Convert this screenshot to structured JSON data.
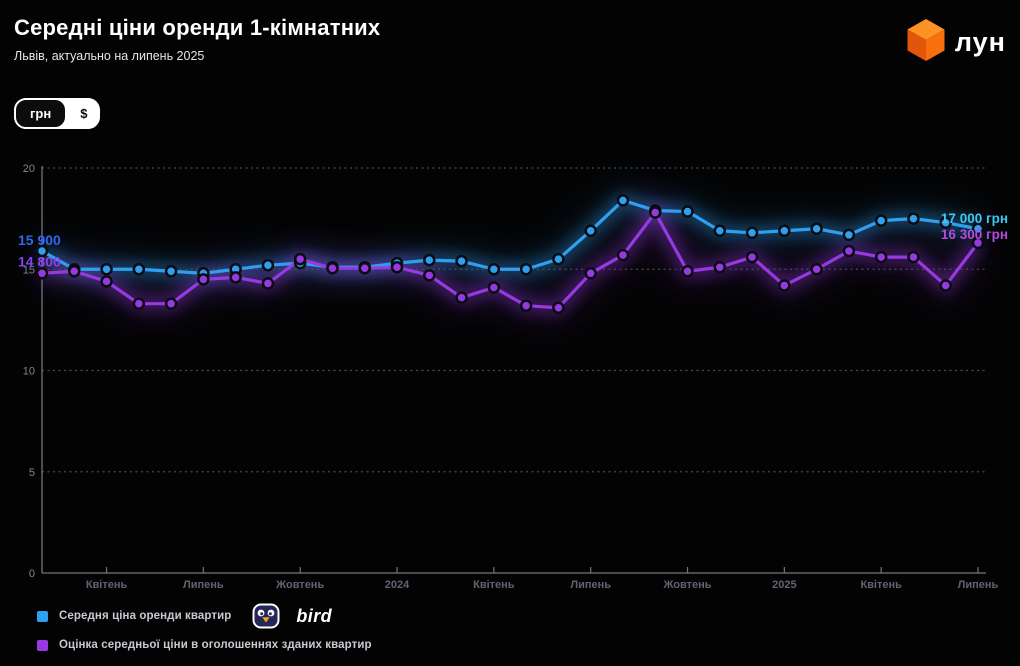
{
  "header": {
    "title": "Середні ціни оренди 1-кімнатних",
    "subtitle": "Львів, актуально на липень 2025",
    "logo_text": "лун"
  },
  "currency_toggle": {
    "options": [
      {
        "label": "грн",
        "active": true
      },
      {
        "label": "$",
        "active": false
      }
    ]
  },
  "chart_data": {
    "type": "line",
    "title": "Середні ціни оренди 1-кімнатних",
    "subtitle": "Львів, актуально на липень 2025",
    "y_scale_note": "values in thousands of грн",
    "ylim": [
      0,
      20
    ],
    "y_ticks": [
      0,
      5,
      10,
      15,
      20
    ],
    "grid": "dotted horizontal gridlines",
    "legend_position": "bottom-left",
    "points_count": 30,
    "x_ticks": [
      {
        "index": 2,
        "label": "Квітень"
      },
      {
        "index": 5,
        "label": "Липень"
      },
      {
        "index": 8,
        "label": "Жовтень"
      },
      {
        "index": 11,
        "label": "2024"
      },
      {
        "index": 14,
        "label": "Квітень"
      },
      {
        "index": 17,
        "label": "Липень"
      },
      {
        "index": 20,
        "label": "Жовтень"
      },
      {
        "index": 23,
        "label": "2025"
      },
      {
        "index": 26,
        "label": "Квітень"
      },
      {
        "index": 29,
        "label": "Липень"
      }
    ],
    "series": [
      {
        "name": "Середня ціна оренди квартир",
        "color": "#2f9ff0",
        "start_label": "15 900",
        "start_label_color": "#2d68f0",
        "end_label": "17 000 грн",
        "end_label_color": "#3cc8f5",
        "values": [
          15.9,
          15.0,
          15.0,
          15.0,
          14.9,
          14.8,
          15.0,
          15.2,
          15.3,
          15.1,
          15.1,
          15.3,
          15.45,
          15.4,
          15.0,
          15.0,
          15.5,
          16.9,
          18.4,
          17.9,
          17.85,
          16.9,
          16.8,
          16.9,
          17.0,
          16.7,
          17.4,
          17.5,
          17.3,
          17.0
        ]
      },
      {
        "name": "Оцінка середньої ціни в оголошеннях зданих квартир",
        "color": "#9639e0",
        "start_label": "14 800",
        "start_label_color": "#8a41f0",
        "end_label": "16 300 грн",
        "end_label_color": "#b44ae0",
        "values": [
          14.8,
          14.9,
          14.4,
          13.3,
          13.3,
          14.5,
          14.6,
          14.3,
          15.5,
          15.05,
          15.05,
          15.1,
          14.7,
          13.6,
          14.1,
          13.2,
          13.1,
          14.8,
          15.7,
          17.8,
          14.9,
          15.1,
          15.6,
          14.2,
          15.0,
          15.9,
          15.6,
          15.6,
          14.2,
          16.3
        ]
      }
    ]
  },
  "legend": {
    "items": [
      {
        "label": "Середня ціна оренди квартир",
        "partner": "bird"
      },
      {
        "label": "Оцінка середньої ціни в оголошеннях зданих квартир"
      }
    ]
  }
}
